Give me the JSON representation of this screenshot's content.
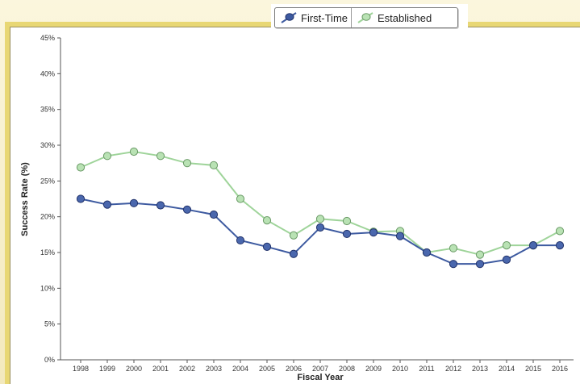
{
  "chart_data": {
    "type": "line",
    "xlabel": "Fiscal Year",
    "ylabel": "Success Rate  (%)",
    "ylim": [
      0,
      45
    ],
    "yticks": [
      0,
      5,
      10,
      15,
      20,
      25,
      30,
      35,
      40,
      45
    ],
    "ytick_labels": [
      "0%",
      "5%",
      "10%",
      "15%",
      "20%",
      "25%",
      "30%",
      "35%",
      "40%",
      "45%"
    ],
    "categories": [
      "1998",
      "1999",
      "2000",
      "2001",
      "2002",
      "2003",
      "2004",
      "2005",
      "2006",
      "2007",
      "2008",
      "2009",
      "2010",
      "2011",
      "2012",
      "2013",
      "2014",
      "2015",
      "2016"
    ],
    "series": [
      {
        "name": "First-Time",
        "color": "#3d5aa0",
        "values": [
          22.5,
          21.7,
          21.9,
          21.6,
          21.0,
          20.3,
          16.7,
          15.8,
          14.8,
          18.5,
          17.6,
          17.8,
          17.3,
          15.0,
          13.4,
          13.4,
          14.0,
          16.0,
          16.0
        ]
      },
      {
        "name": "Established",
        "color": "#9fd49a",
        "values": [
          26.9,
          28.5,
          29.1,
          28.5,
          27.5,
          27.2,
          22.5,
          19.5,
          17.4,
          19.7,
          19.4,
          17.9,
          18.0,
          15.0,
          15.6,
          14.7,
          16.0,
          16.0,
          18.0
        ]
      }
    ],
    "grid": false,
    "legend_position": "top-center"
  },
  "legend": {
    "first_time_label": "First-Time",
    "established_label": "Established"
  }
}
